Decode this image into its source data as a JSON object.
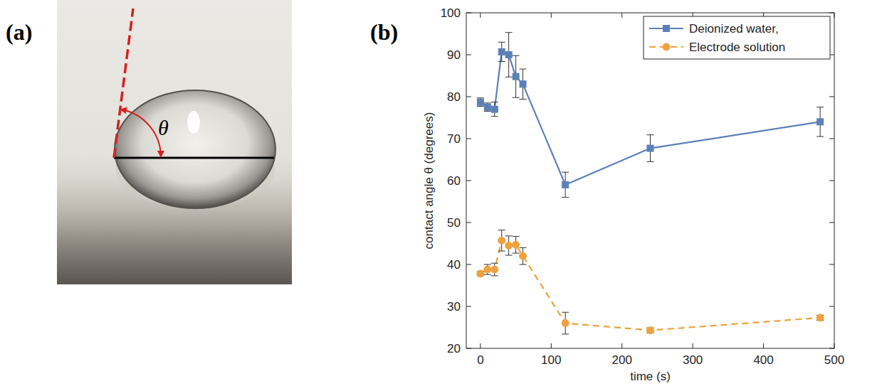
{
  "panel_labels": [
    "(a)",
    "(b)"
  ],
  "photo": {
    "angle_label": "θ"
  },
  "chart_data": {
    "type": "line",
    "x_label": "time (s)",
    "y_label": "contact angle θ (degrees)",
    "x": [
      0,
      10,
      20,
      30,
      40,
      50,
      60,
      120,
      240,
      480
    ],
    "series": [
      {
        "name": "Deionized water,",
        "color": "#5b80b8",
        "marker": "square",
        "line_style": "solid",
        "values": [
          78.7,
          77.5,
          77,
          90.7,
          90,
          84.8,
          83,
          59,
          67.7,
          74
        ],
        "errors": [
          1,
          1,
          1.7,
          2.3,
          5.3,
          5,
          3.6,
          3,
          3.2,
          3.5
        ]
      },
      {
        "name": "Electrode solution",
        "color": "#f0a03c",
        "marker": "circle",
        "line_style": "dashed",
        "values": [
          37.8,
          38.8,
          38.8,
          45.7,
          44.5,
          44.7,
          42,
          26,
          24.3,
          27.3
        ],
        "errors": [
          0.5,
          1.2,
          1.5,
          2.5,
          2.3,
          2,
          2,
          2.6,
          0.6,
          0.6
        ]
      }
    ],
    "xlim": [
      -20,
      500
    ],
    "xticks": [
      0,
      100,
      200,
      300,
      400,
      500
    ],
    "ylim": [
      20,
      100
    ],
    "yticks": [
      20,
      30,
      40,
      50,
      60,
      70,
      80,
      90,
      100
    ],
    "grid": false,
    "legend": "top-right"
  }
}
